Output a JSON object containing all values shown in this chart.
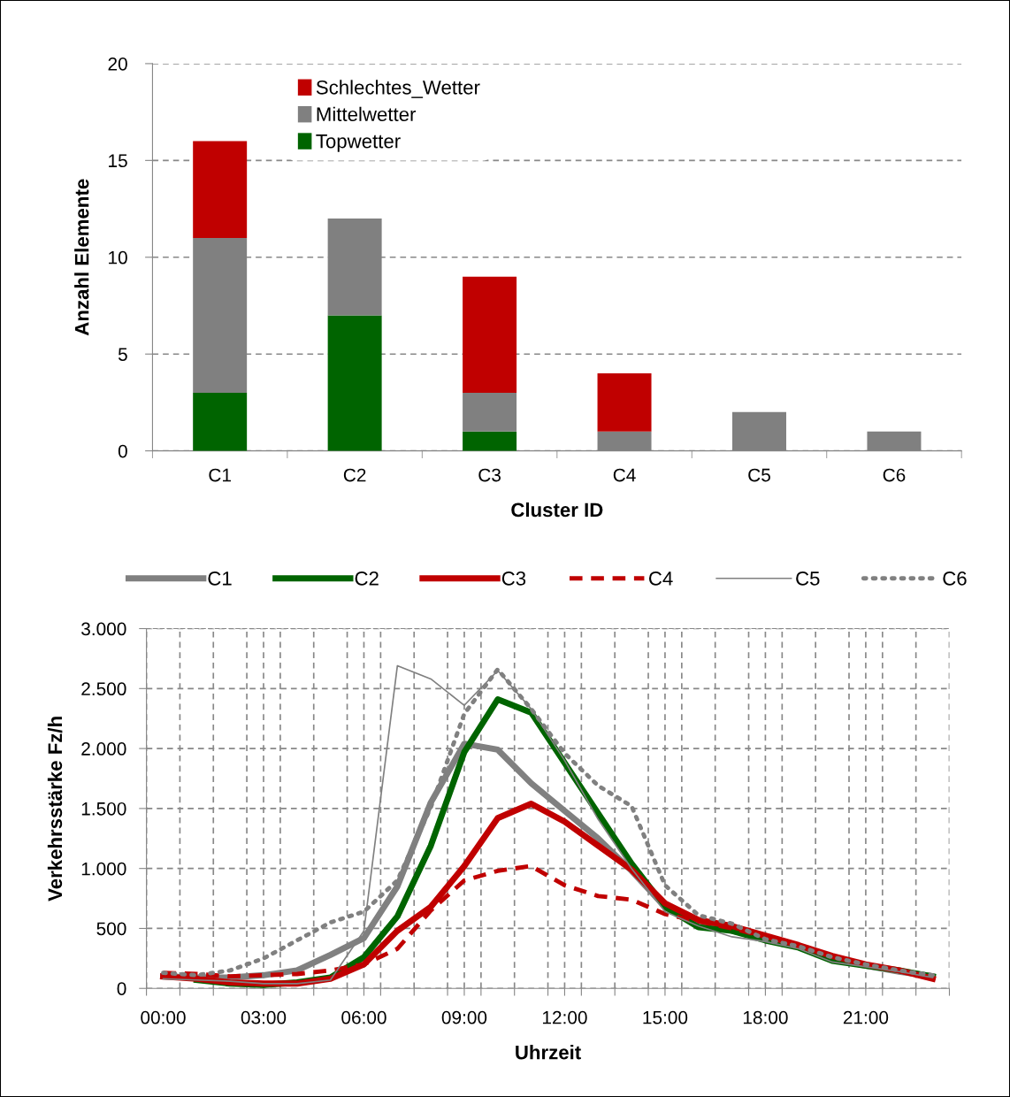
{
  "chart_data": [
    {
      "type": "bar",
      "stacked": true,
      "xlabel": "Cluster ID",
      "ylabel": "Anzahl Elemente",
      "categories": [
        "C1",
        "C2",
        "C3",
        "C4",
        "C5",
        "C6"
      ],
      "series": [
        {
          "name": "Topwetter",
          "color": "#006400",
          "values": [
            3,
            7,
            1,
            0,
            0,
            0
          ]
        },
        {
          "name": "Mittelwetter",
          "color": "#808080",
          "values": [
            8,
            5,
            2,
            1,
            2,
            1
          ]
        },
        {
          "name": "Schlechtes_Wetter",
          "color": "#c00000",
          "values": [
            5,
            0,
            6,
            3,
            0,
            0
          ]
        }
      ],
      "ylim": [
        0,
        20
      ],
      "yticks": [
        0,
        5,
        10,
        15,
        20
      ],
      "grid": "y",
      "legend": "top left"
    },
    {
      "type": "line",
      "xlabel": "Uhrzeit",
      "ylabel": "Verkehrsstärke Fz/h",
      "x": [
        0,
        1,
        2,
        3,
        4,
        5,
        6,
        7,
        8,
        9,
        10,
        11,
        12,
        13,
        14,
        15,
        16,
        17,
        18,
        19,
        20,
        21,
        22,
        23
      ],
      "series": [
        {
          "name": "C1",
          "color": "#808080",
          "line_style": "solid",
          "values": [
            100,
            90,
            90,
            110,
            150,
            280,
            420,
            850,
            1550,
            2040,
            1990,
            1710,
            1480,
            1250,
            980,
            680,
            540,
            480,
            420,
            350,
            250,
            190,
            140,
            100
          ]
        },
        {
          "name": "C2",
          "color": "#006400",
          "line_style": "solid",
          "values": [
            null,
            70,
            40,
            30,
            50,
            90,
            260,
            600,
            1190,
            1970,
            2410,
            2300,
            1880,
            1460,
            1040,
            680,
            510,
            480,
            400,
            340,
            230,
            190,
            150,
            100
          ]
        },
        {
          "name": "C3",
          "color": "#c00000",
          "line_style": "solid",
          "values": [
            100,
            80,
            50,
            40,
            40,
            80,
            200,
            480,
            680,
            1020,
            1420,
            1540,
            1390,
            1190,
            990,
            710,
            570,
            520,
            440,
            360,
            270,
            200,
            150,
            80
          ]
        },
        {
          "name": "C4",
          "color": "#c00000",
          "line_style": "dashed",
          "values": [
            130,
            120,
            100,
            110,
            120,
            150,
            200,
            330,
            650,
            900,
            980,
            1020,
            860,
            770,
            740,
            620,
            560,
            500,
            430,
            360,
            270,
            200,
            150,
            90
          ]
        },
        {
          "name": "C5",
          "color": "#808080",
          "line_style": "solid",
          "values": [
            80,
            70,
            60,
            40,
            40,
            70,
            480,
            2690,
            2580,
            2360,
            2650,
            2330,
            1900,
            1410,
            1000,
            640,
            520,
            430,
            390,
            330,
            220,
            180,
            140,
            90
          ]
        },
        {
          "name": "C6",
          "color": "#808080",
          "line_style": "dotted",
          "values": [
            130,
            110,
            150,
            250,
            400,
            550,
            640,
            900,
            1510,
            2290,
            2660,
            2330,
            1960,
            1690,
            1520,
            860,
            610,
            540,
            410,
            350,
            260,
            200,
            150,
            110
          ]
        }
      ],
      "xlim": [
        -0.5,
        23.5
      ],
      "xticks": [
        {
          "value": -0.5,
          "label": null
        },
        {
          "value": 0.5,
          "label": null
        },
        {
          "value": 1.5,
          "label": null
        },
        {
          "value": 2.5,
          "label": null
        },
        {
          "value": 3.5,
          "label": null
        },
        {
          "value": 4.5,
          "label": null
        },
        {
          "value": 5.5,
          "label": null
        },
        {
          "value": 6.5,
          "label": null
        },
        {
          "value": 7.5,
          "label": null
        },
        {
          "value": 8.5,
          "label": null
        },
        {
          "value": 9.5,
          "label": null
        },
        {
          "value": 10.5,
          "label": null
        },
        {
          "value": 11.5,
          "label": null
        },
        {
          "value": 12.5,
          "label": null
        },
        {
          "value": 13.5,
          "label": null
        },
        {
          "value": 14.5,
          "label": null
        },
        {
          "value": 15.5,
          "label": null
        },
        {
          "value": 16.5,
          "label": null
        },
        {
          "value": 17.5,
          "label": null
        },
        {
          "value": 18.5,
          "label": null
        },
        {
          "value": 19.5,
          "label": null
        },
        {
          "value": 20.5,
          "label": null
        },
        {
          "value": 21.5,
          "label": null
        },
        {
          "value": 22.5,
          "label": null
        },
        {
          "value": 23.5,
          "label": null
        },
        {
          "value": 0,
          "label": "00:00"
        },
        {
          "value": 3,
          "label": "03:00"
        },
        {
          "value": 6,
          "label": "06:00"
        },
        {
          "value": 9,
          "label": "09:00"
        },
        {
          "value": 12,
          "label": "12:00"
        },
        {
          "value": 15,
          "label": "15:00"
        },
        {
          "value": 18,
          "label": "18:00"
        },
        {
          "value": 21,
          "label": "21:00"
        }
      ],
      "ylim": [
        0,
        3000
      ],
      "yticks": [
        0,
        {
          "value": 500,
          "label": "500"
        },
        {
          "value": 1000,
          "label": "1.000"
        },
        {
          "value": 1500,
          "label": "1.500"
        },
        {
          "value": 2000,
          "label": "2.000"
        },
        {
          "value": 2500,
          "label": "2.500"
        },
        {
          "value": 3000,
          "label": "3.000"
        }
      ],
      "grid": true,
      "legend": "top"
    }
  ]
}
